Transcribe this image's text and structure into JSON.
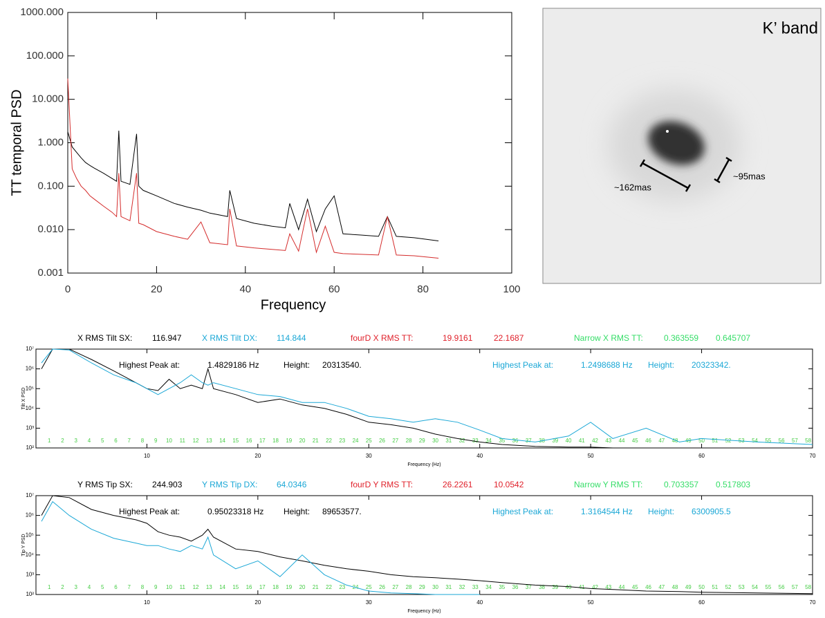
{
  "chart_data": [
    {
      "type": "line",
      "ylabel": "TT temporal  PSD",
      "xlabel": "Frequency",
      "log_y": true,
      "xlim": [
        0,
        100
      ],
      "xticks": [
        0,
        20,
        40,
        60,
        80,
        100
      ],
      "ylim": [
        0.001,
        1000
      ],
      "yticks": [
        0.001,
        {
          "value": 0.01,
          "label": "0.010"
        },
        {
          "value": 0.1,
          "label": "0.100"
        },
        {
          "value": 1,
          "label": "1.000"
        },
        {
          "value": 10,
          "label": "10.000"
        },
        {
          "value": 100,
          "label": "100.000"
        },
        {
          "value": 1000,
          "label": "1000.000"
        }
      ],
      "x": [
        0,
        1,
        2,
        3,
        4,
        5,
        6,
        8,
        10,
        11,
        11.5,
        12,
        14,
        15.5,
        16,
        17,
        20,
        24,
        27,
        30,
        32,
        36,
        36.5,
        38,
        42,
        46,
        49,
        50,
        52,
        54,
        56,
        58,
        60,
        62,
        66,
        70,
        72,
        74,
        78,
        83.5
      ],
      "series": [
        {
          "color": "#000000",
          "values": [
            1.8,
            0.8,
            0.6,
            0.45,
            0.35,
            0.3,
            0.26,
            0.2,
            0.15,
            0.13,
            1.9,
            0.13,
            0.11,
            1.6,
            0.1,
            0.08,
            0.06,
            0.04,
            0.033,
            0.028,
            0.024,
            0.02,
            0.08,
            0.018,
            0.014,
            0.012,
            0.011,
            0.04,
            0.01,
            0.05,
            0.009,
            0.03,
            0.06,
            0.008,
            0.0075,
            0.007,
            0.02,
            0.007,
            0.0065,
            0.0055
          ]
        },
        {
          "color": "#d42a2a",
          "values": [
            30,
            0.25,
            0.15,
            0.1,
            0.08,
            0.06,
            0.05,
            0.035,
            0.025,
            0.02,
            0.2,
            0.02,
            0.016,
            0.2,
            0.014,
            0.013,
            0.009,
            0.007,
            0.006,
            0.015,
            0.005,
            0.0045,
            0.03,
            0.0042,
            0.0038,
            0.0035,
            0.0033,
            0.008,
            0.0032,
            0.03,
            0.003,
            0.012,
            0.003,
            0.0028,
            0.0027,
            0.0026,
            0.02,
            0.0026,
            0.0025,
            0.0022
          ]
        }
      ]
    },
    {
      "type": "line",
      "ylabel": "Tilt X PSD",
      "xlabel": "Frequency (Hz)",
      "log_y": true,
      "xlim": [
        0,
        70
      ],
      "xticks": [
        10,
        20,
        30,
        40,
        50,
        60,
        70
      ],
      "ylim": [
        100,
        10000000
      ],
      "yticks": [
        {
          "value": 100,
          "label": "10²"
        },
        {
          "value": 1000,
          "label": "10³"
        },
        {
          "value": 10000,
          "label": "10⁴"
        },
        {
          "value": 100000,
          "label": "10⁵"
        },
        {
          "value": 1000000,
          "label": "10⁶"
        },
        {
          "value": 10000000,
          "label": "10⁷"
        }
      ],
      "stats": [
        {
          "text": "X RMS Tilt SX:",
          "color": "#000000"
        },
        {
          "text": "116.947",
          "color": "#000000"
        },
        {
          "text": "X RMS Tilt DX:",
          "color": "#1aa7d6"
        },
        {
          "text": "114.844",
          "color": "#1aa7d6"
        },
        {
          "text": "fourD X RMS TT:",
          "color": "#e0202a"
        },
        {
          "text": "19.9161",
          "color": "#e0202a"
        },
        {
          "text": "22.1687",
          "color": "#e0202a"
        },
        {
          "text": "Narrow X RMS TT:",
          "color": "#33dd66"
        },
        {
          "text": "0.363559",
          "color": "#33dd66"
        },
        {
          "text": "0.645707",
          "color": "#33dd66"
        }
      ],
      "annotations": [
        {
          "text": "Highest Peak at:",
          "color": "#000000"
        },
        {
          "text": "1.4829186 Hz",
          "color": "#000000"
        },
        {
          "text": "Height:",
          "color": "#000000"
        },
        {
          "text": "20313540.",
          "color": "#000000"
        },
        {
          "text": "Highest Peak at:",
          "color": "#1aa7d6"
        },
        {
          "text": "1.2498688 Hz",
          "color": "#1aa7d6"
        },
        {
          "text": "Height:",
          "color": "#1aa7d6"
        },
        {
          "text": "20323342.",
          "color": "#1aa7d6"
        }
      ],
      "markers": {
        "color": "#44cc44",
        "labels": [
          1,
          2,
          3,
          4,
          5,
          6,
          7,
          8,
          9,
          10,
          11,
          12,
          13,
          14,
          15,
          16,
          17,
          18,
          19,
          20,
          21,
          22,
          23,
          24,
          25,
          26,
          27,
          28,
          29,
          30,
          31,
          32,
          33,
          34,
          35,
          36,
          37,
          38,
          39,
          40,
          41,
          42,
          43,
          44,
          45,
          46,
          47,
          48,
          49,
          50,
          51,
          52,
          53,
          54,
          55,
          56,
          57,
          58
        ],
        "x": [
          1.2,
          2.4,
          3.6,
          4.8,
          6,
          7.2,
          8.4,
          9.6,
          10.8,
          12,
          13.2,
          14.4,
          15.6,
          16.8,
          18,
          19.2,
          20.4,
          21.6,
          22.8,
          24,
          25.2,
          26.4,
          27.6,
          28.8,
          30,
          31.2,
          32.4,
          33.6,
          34.8,
          36,
          37.2,
          38.4,
          39.6,
          40.8,
          42,
          43.2,
          44.4,
          45.6,
          46.8,
          48,
          49.2,
          50.4,
          51.6,
          52.8,
          54,
          55.2,
          56.4,
          57.6,
          58.8,
          60,
          61.2,
          62.4,
          63.6,
          64.8,
          66,
          67.2,
          68.4,
          69.6
        ]
      },
      "x": [
        0.5,
        1.5,
        3,
        5,
        7,
        9,
        10,
        11,
        12,
        13,
        14,
        15,
        15.5,
        16,
        18,
        20,
        22,
        24,
        26,
        28,
        30,
        32,
        34,
        36,
        38,
        40,
        42,
        45,
        48,
        50,
        52,
        55,
        58,
        60,
        65,
        70
      ],
      "series": [
        {
          "color": "#000000",
          "values": [
            1000000,
            10000000,
            10000000,
            3000000,
            800000,
            200000,
            100000,
            80000,
            300000,
            100000,
            150000,
            100000,
            1000000,
            100000,
            50000,
            20000,
            30000,
            15000,
            10000,
            5000,
            2000,
            1500,
            1000,
            500,
            300,
            200,
            150,
            120,
            110,
            110,
            100,
            100,
            null,
            null,
            null,
            null
          ]
        },
        {
          "color": "#1aa7d6",
          "values": [
            2000000,
            10000000,
            9000000,
            2000000,
            500000,
            200000,
            100000,
            50000,
            100000,
            200000,
            500000,
            200000,
            150000,
            200000,
            100000,
            50000,
            40000,
            20000,
            20000,
            10000,
            4000,
            3000,
            2000,
            3000,
            2000,
            800,
            300,
            200,
            400,
            2000,
            300,
            1000,
            200,
            300,
            200,
            150
          ]
        }
      ]
    },
    {
      "type": "line",
      "ylabel": "Tip Y PSD",
      "xlabel": "Frequency (Hz)",
      "log_y": true,
      "xlim": [
        0,
        70
      ],
      "xticks": [
        10,
        20,
        30,
        40,
        50,
        60,
        70
      ],
      "ylim": [
        100,
        10000000
      ],
      "yticks": [
        {
          "value": 100,
          "label": "10²"
        },
        {
          "value": 1000,
          "label": "10³"
        },
        {
          "value": 10000,
          "label": "10⁴"
        },
        {
          "value": 100000,
          "label": "10⁵"
        },
        {
          "value": 1000000,
          "label": "10⁶"
        },
        {
          "value": 10000000,
          "label": "10⁷"
        }
      ],
      "stats": [
        {
          "text": "Y RMS Tip SX:",
          "color": "#000000"
        },
        {
          "text": "244.903",
          "color": "#000000"
        },
        {
          "text": "Y RMS Tip DX:",
          "color": "#1aa7d6"
        },
        {
          "text": "64.0346",
          "color": "#1aa7d6"
        },
        {
          "text": "fourD Y RMS TT:",
          "color": "#e0202a"
        },
        {
          "text": "26.2261",
          "color": "#e0202a"
        },
        {
          "text": "10.0542",
          "color": "#e0202a"
        },
        {
          "text": "Narrow Y RMS TT:",
          "color": "#33dd66"
        },
        {
          "text": "0.703357",
          "color": "#33dd66"
        },
        {
          "text": "0.517803",
          "color": "#33dd66"
        }
      ],
      "annotations": [
        {
          "text": "Highest Peak at:",
          "color": "#000000"
        },
        {
          "text": "0.95023318 Hz",
          "color": "#000000"
        },
        {
          "text": "Height:",
          "color": "#000000"
        },
        {
          "text": "89653577.",
          "color": "#000000"
        },
        {
          "text": "Highest Peak at:",
          "color": "#1aa7d6"
        },
        {
          "text": "1.3164544 Hz",
          "color": "#1aa7d6"
        },
        {
          "text": "Height:",
          "color": "#1aa7d6"
        },
        {
          "text": "6300905.5",
          "color": "#1aa7d6"
        }
      ],
      "markers": {
        "color": "#44cc44",
        "labels": [
          1,
          2,
          3,
          4,
          5,
          6,
          7,
          8,
          9,
          10,
          11,
          12,
          13,
          14,
          15,
          16,
          17,
          18,
          19,
          20,
          21,
          22,
          23,
          24,
          25,
          26,
          27,
          28,
          29,
          30,
          31,
          32,
          33,
          34,
          35,
          36,
          37,
          38,
          39,
          40,
          41,
          42,
          43,
          44,
          45,
          46,
          47,
          48,
          49,
          50,
          51,
          52,
          53,
          54,
          55,
          56,
          57,
          58
        ],
        "x": [
          1.2,
          2.4,
          3.6,
          4.8,
          6,
          7.2,
          8.4,
          9.6,
          10.8,
          12,
          13.2,
          14.4,
          15.6,
          16.8,
          18,
          19.2,
          20.4,
          21.6,
          22.8,
          24,
          25.2,
          26.4,
          27.6,
          28.8,
          30,
          31.2,
          32.4,
          33.6,
          34.8,
          36,
          37.2,
          38.4,
          39.6,
          40.8,
          42,
          43.2,
          44.4,
          45.6,
          46.8,
          48,
          49.2,
          50.4,
          51.6,
          52.8,
          54,
          55.2,
          56.4,
          57.6,
          58.8,
          60,
          61.2,
          62.4,
          63.6,
          64.8,
          66,
          67.2,
          68.4,
          69.6
        ]
      },
      "x": [
        0.5,
        1.5,
        3,
        5,
        7,
        9,
        10,
        11,
        12,
        13,
        14,
        15,
        15.5,
        16,
        18,
        20,
        22,
        24,
        26,
        28,
        30,
        32,
        34,
        36,
        38,
        40,
        42,
        45,
        48,
        50,
        52,
        55,
        58,
        60,
        65,
        70
      ],
      "series": [
        {
          "color": "#000000",
          "values": [
            1000000,
            10000000,
            8000000,
            2000000,
            1000000,
            600000,
            400000,
            150000,
            100000,
            80000,
            50000,
            100000,
            200000,
            80000,
            20000,
            15000,
            8000,
            5000,
            3000,
            2000,
            1500,
            1000,
            800,
            700,
            600,
            500,
            400,
            300,
            250,
            200,
            180,
            150,
            140,
            130,
            120,
            110
          ]
        },
        {
          "color": "#1aa7d6",
          "values": [
            500000,
            5000000,
            1000000,
            200000,
            70000,
            40000,
            30000,
            30000,
            20000,
            15000,
            30000,
            20000,
            80000,
            10000,
            2000,
            5000,
            800,
            10000,
            1000,
            300,
            150,
            120,
            110,
            100,
            100,
            100,
            null,
            null,
            null,
            null,
            null,
            null,
            null,
            null,
            null,
            null
          ]
        }
      ]
    }
  ],
  "image_panel": {
    "label": "K’ band",
    "annotations": [
      "~162mas",
      "~95mas"
    ]
  }
}
